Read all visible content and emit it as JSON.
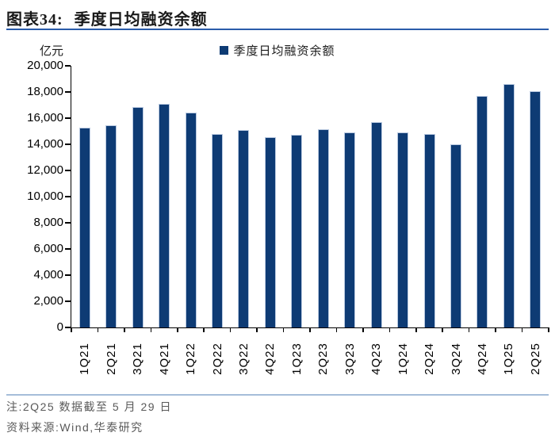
{
  "figure": {
    "label": "图表34:",
    "title": "季度日均融资余额",
    "unit": "亿元",
    "legend_label": "季度日均融资余额",
    "note": "注:2Q25 数据截至 5 月 29 日",
    "source": "资料来源:Wind,华泰研究"
  },
  "chart_data": {
    "type": "bar",
    "title": "季度日均融资余额",
    "ylabel": "亿元",
    "legend": [
      "季度日均融资余额"
    ],
    "legend_position": "top-center",
    "grid": false,
    "ylim": [
      0,
      20000
    ],
    "ytick_step": 2000,
    "categories": [
      "1Q21",
      "2Q21",
      "3Q21",
      "4Q21",
      "1Q22",
      "2Q22",
      "3Q22",
      "4Q22",
      "1Q23",
      "2Q23",
      "3Q23",
      "4Q23",
      "1Q24",
      "2Q24",
      "3Q24",
      "4Q24",
      "1Q25",
      "2Q25"
    ],
    "values": [
      15250,
      15450,
      16850,
      17100,
      16400,
      14800,
      15100,
      14550,
      14750,
      15150,
      14900,
      15700,
      14900,
      14800,
      14000,
      17700,
      18600,
      18050
    ]
  },
  "colors": {
    "bar": "#0e3b74",
    "title_rule": "#2a5caa",
    "footer_rule": "#a6bdd9",
    "note_text": "#595959",
    "axis": "#000000"
  }
}
